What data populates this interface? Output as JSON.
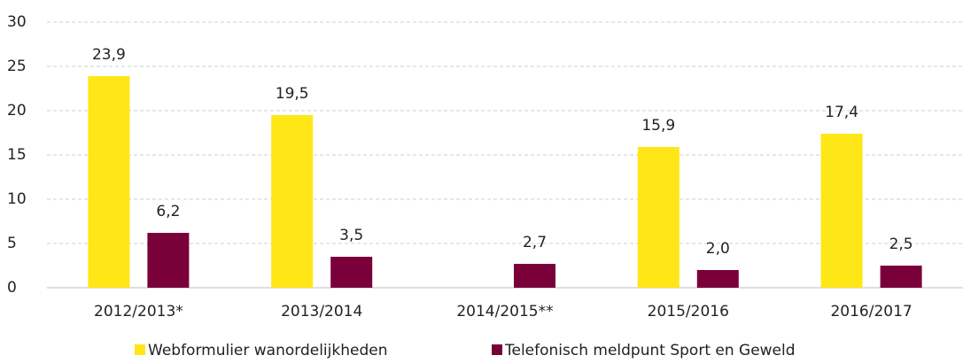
{
  "chart_data": {
    "type": "bar",
    "categories": [
      "2012/2013*",
      "2013/2014",
      "2014/2015**",
      "2015/2016",
      "2016/2017"
    ],
    "series": [
      {
        "name": "Webformulier wanordelijkheden",
        "color": "#ffe617",
        "values": [
          23.9,
          19.5,
          null,
          15.9,
          17.4
        ],
        "value_labels": [
          "23,9",
          "19,5",
          null,
          "15,9",
          "17,4"
        ]
      },
      {
        "name": "Telefonisch meldpunt Sport en Geweld",
        "color": "#7a0039",
        "values": [
          6.2,
          3.5,
          2.7,
          2.0,
          2.5
        ],
        "value_labels": [
          "6,2",
          "3,5",
          "2,7",
          "2,0",
          "2,5"
        ]
      }
    ],
    "ylim": [
      0,
      30
    ],
    "yticks": [
      0,
      5,
      10,
      15,
      20,
      25,
      30
    ],
    "grid": true,
    "legend": "bottom"
  }
}
